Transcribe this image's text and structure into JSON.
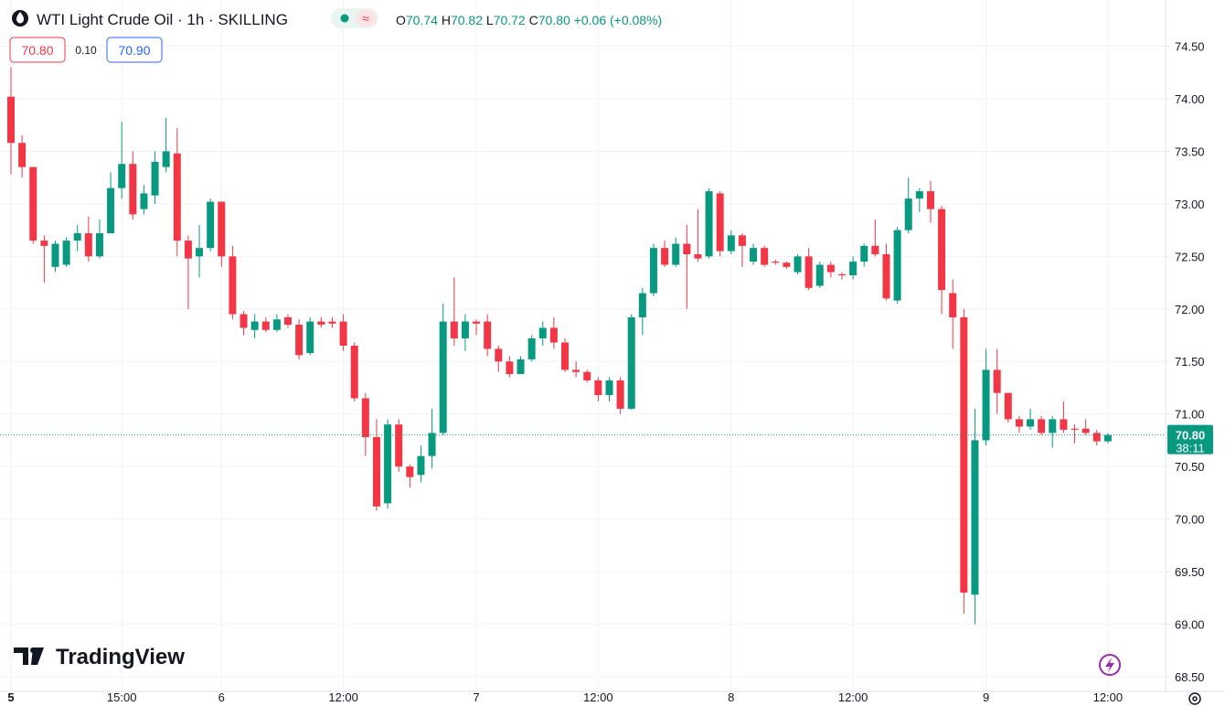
{
  "chart_data": {
    "type": "candlestick",
    "title": "WTI Light Crude Oil · 1h · SKILLING",
    "legend": [
      {
        "key": "O",
        "value": "70.74"
      },
      {
        "key": "H",
        "value": "70.82"
      },
      {
        "key": "L",
        "value": "70.72"
      },
      {
        "key": "C",
        "value": "70.80"
      }
    ],
    "change": "+0.06 (+0.08%)",
    "bid": "70.80",
    "spread": "0.10",
    "ask": "70.90",
    "watermark": "TradingView",
    "up_color": "#089981",
    "down_color": "#f23645",
    "categories": [
      "5",
      null,
      null,
      null,
      null,
      null,
      null,
      null,
      null,
      null,
      "15:00",
      null,
      null,
      null,
      null,
      null,
      null,
      null,
      null,
      "6",
      null,
      null,
      null,
      null,
      null,
      null,
      null,
      null,
      null,
      null,
      "12:00",
      null,
      null,
      null,
      null,
      null,
      null,
      null,
      null,
      null,
      null,
      null,
      "7",
      null,
      null,
      null,
      null,
      null,
      null,
      null,
      null,
      null,
      null,
      "12:00",
      null,
      null,
      null,
      null,
      null,
      null,
      null,
      null,
      null,
      null,
      null,
      "8",
      null,
      null,
      null,
      null,
      null,
      null,
      null,
      null,
      null,
      null,
      "12:00",
      null,
      null,
      null,
      null,
      null,
      null,
      null,
      null,
      null,
      null,
      null,
      "9",
      null,
      null,
      null,
      null,
      null,
      null,
      null,
      null,
      null,
      null,
      "12:00"
    ],
    "open": [
      74.02,
      73.58,
      73.35,
      72.65,
      72.4,
      72.42,
      72.65,
      72.72,
      72.5,
      72.72,
      73.15,
      73.38,
      72.95,
      73.08,
      73.35,
      73.48,
      72.65,
      72.5,
      72.58,
      73.02,
      72.5,
      71.95,
      71.8,
      71.88,
      71.8,
      71.92,
      71.85,
      71.58,
      71.88,
      71.88,
      71.88,
      71.65,
      71.15,
      70.78,
      70.15,
      70.9,
      70.5,
      70.42,
      70.6,
      70.82,
      71.88,
      71.72,
      71.88,
      71.88,
      71.62,
      71.5,
      71.38,
      71.52,
      71.72,
      71.82,
      71.68,
      71.42,
      71.4,
      71.32,
      71.18,
      71.32,
      71.05,
      71.92,
      72.15,
      72.58,
      72.42,
      72.62,
      72.52,
      72.5,
      73.1,
      72.55,
      72.7,
      72.45,
      72.58,
      72.45,
      72.44,
      72.35,
      72.5,
      72.22,
      72.42,
      72.33,
      72.32,
      72.45,
      72.6,
      72.52,
      72.08,
      72.75,
      73.05,
      73.12,
      72.95,
      72.15,
      71.92,
      69.28,
      70.75,
      71.42,
      71.2,
      70.95,
      70.88,
      70.95,
      70.82,
      70.95,
      70.86,
      70.86,
      70.82,
      70.74
    ],
    "high": [
      74.3,
      73.65,
      73.35,
      72.7,
      72.65,
      72.68,
      72.8,
      72.88,
      72.85,
      73.3,
      73.78,
      73.5,
      73.18,
      73.5,
      73.82,
      73.72,
      72.7,
      72.8,
      73.05,
      73.02,
      72.6,
      71.98,
      71.95,
      71.92,
      71.95,
      71.95,
      71.9,
      71.92,
      71.92,
      71.92,
      71.95,
      71.68,
      71.2,
      70.95,
      70.95,
      70.95,
      70.52,
      70.7,
      71.05,
      72.05,
      72.3,
      71.95,
      71.9,
      71.95,
      71.65,
      71.55,
      71.55,
      71.75,
      71.88,
      71.92,
      71.72,
      71.5,
      71.42,
      71.35,
      71.35,
      71.35,
      71.95,
      72.2,
      72.62,
      72.65,
      72.68,
      72.8,
      72.95,
      73.15,
      73.12,
      72.75,
      72.72,
      72.62,
      72.6,
      72.47,
      72.45,
      72.52,
      72.58,
      72.45,
      72.45,
      72.35,
      72.5,
      72.62,
      72.85,
      72.62,
      72.78,
      73.25,
      73.15,
      73.22,
      72.98,
      72.28,
      72.0,
      71.05,
      71.62,
      71.62,
      71.2,
      70.98,
      71.05,
      70.98,
      70.98,
      71.12,
      70.9,
      70.95,
      70.85,
      70.82
    ],
    "low": [
      73.28,
      73.25,
      72.62,
      72.25,
      72.35,
      72.4,
      72.55,
      72.45,
      72.48,
      72.72,
      73.05,
      72.85,
      72.9,
      73.0,
      73.3,
      72.5,
      72.0,
      72.3,
      72.55,
      72.4,
      71.9,
      71.75,
      71.72,
      71.78,
      71.78,
      71.82,
      71.52,
      71.56,
      71.82,
      71.82,
      71.6,
      71.12,
      70.6,
      70.08,
      70.1,
      70.45,
      70.3,
      70.35,
      70.48,
      70.8,
      71.65,
      71.6,
      71.75,
      71.55,
      71.4,
      71.35,
      71.38,
      71.5,
      71.65,
      71.62,
      71.4,
      71.35,
      71.3,
      71.12,
      71.12,
      71.0,
      71.04,
      71.75,
      72.12,
      72.4,
      72.4,
      72.0,
      72.45,
      72.48,
      72.5,
      72.52,
      72.4,
      72.42,
      72.4,
      72.42,
      72.38,
      72.33,
      72.18,
      72.2,
      72.3,
      72.28,
      72.28,
      72.4,
      72.5,
      72.08,
      72.05,
      72.72,
      72.92,
      72.82,
      71.95,
      71.62,
      69.1,
      69.0,
      70.7,
      71.0,
      70.92,
      70.82,
      70.85,
      70.8,
      70.68,
      70.82,
      70.72,
      70.8,
      70.7,
      70.72
    ],
    "close": [
      73.58,
      73.35,
      72.65,
      72.6,
      72.62,
      72.65,
      72.72,
      72.5,
      72.72,
      73.15,
      73.38,
      72.9,
      73.1,
      73.4,
      73.5,
      72.65,
      72.48,
      72.58,
      73.02,
      72.5,
      71.95,
      71.82,
      71.88,
      71.8,
      71.9,
      71.85,
      71.56,
      71.88,
      71.85,
      71.86,
      71.65,
      71.15,
      70.78,
      70.12,
      70.9,
      70.5,
      70.4,
      70.6,
      70.82,
      71.88,
      71.72,
      71.88,
      71.86,
      71.62,
      71.5,
      71.38,
      71.52,
      71.72,
      71.82,
      71.68,
      71.42,
      71.4,
      71.32,
      71.18,
      71.32,
      71.05,
      71.92,
      72.15,
      72.58,
      72.42,
      72.62,
      72.52,
      72.48,
      73.12,
      72.55,
      72.7,
      72.6,
      72.58,
      72.42,
      72.44,
      72.4,
      72.5,
      72.2,
      72.42,
      72.35,
      72.32,
      72.45,
      72.6,
      72.52,
      72.1,
      72.75,
      73.05,
      73.12,
      72.95,
      72.18,
      71.92,
      69.3,
      70.75,
      71.42,
      71.2,
      70.95,
      70.88,
      70.95,
      70.82,
      70.95,
      70.85,
      70.85,
      70.82,
      70.74,
      70.8
    ],
    "last_price": {
      "value": 70.8,
      "label": "70.80"
    },
    "countdown": "38:11",
    "ylim": [
      68.36,
      74.94
    ],
    "yticks": [
      {
        "value": 68.5,
        "label": "68.50"
      },
      {
        "value": 69,
        "label": "69.00"
      },
      {
        "value": 69.5,
        "label": "69.50"
      },
      {
        "value": 70,
        "label": "70.00"
      },
      {
        "value": 70.5,
        "label": "70.50"
      },
      {
        "value": 71,
        "label": "71.00"
      },
      {
        "value": 71.5,
        "label": "71.50"
      },
      {
        "value": 72,
        "label": "72.00"
      },
      {
        "value": 72.5,
        "label": "72.50"
      },
      {
        "value": 73,
        "label": "73.00"
      },
      {
        "value": 73.5,
        "label": "73.50"
      },
      {
        "value": 74,
        "label": "74.00"
      },
      {
        "value": 74.5,
        "label": "74.50"
      }
    ],
    "grid": true
  }
}
